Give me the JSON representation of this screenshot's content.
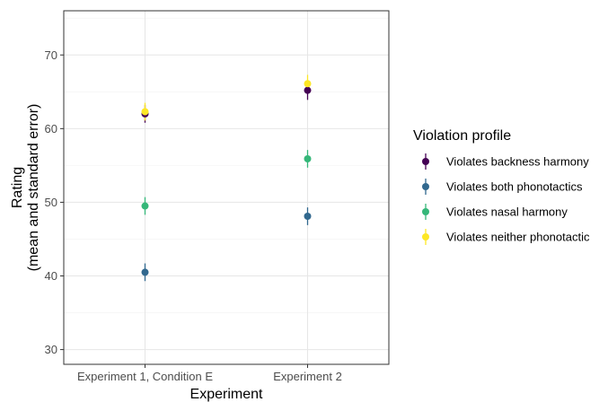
{
  "chart_data": {
    "type": "scatter",
    "xlabel": "Experiment",
    "ylabel_lines": [
      "Rating",
      "(mean and standard error)"
    ],
    "categories": [
      "Experiment 1, Condition E",
      "Experiment 2"
    ],
    "ylim": [
      28,
      76
    ],
    "yticks": [
      30,
      40,
      50,
      60,
      70
    ],
    "grid": true,
    "legend": {
      "title": "Violation profile",
      "placement": "right"
    },
    "series": [
      {
        "name": "Violates backness harmony",
        "color": "#440154",
        "values": [
          62.0,
          65.2
        ],
        "se": [
          1.2,
          1.3
        ]
      },
      {
        "name": "Violates both phonotactics",
        "color": "#31688e",
        "values": [
          40.5,
          48.1
        ],
        "se": [
          1.2,
          1.2
        ]
      },
      {
        "name": "Violates nasal harmony",
        "color": "#35b779",
        "values": [
          49.5,
          55.9
        ],
        "se": [
          1.2,
          1.2
        ]
      },
      {
        "name": "Violates neither phonotactic",
        "color": "#fde725",
        "values": [
          62.3,
          66.1
        ],
        "se": [
          1.2,
          1.2
        ]
      }
    ]
  }
}
